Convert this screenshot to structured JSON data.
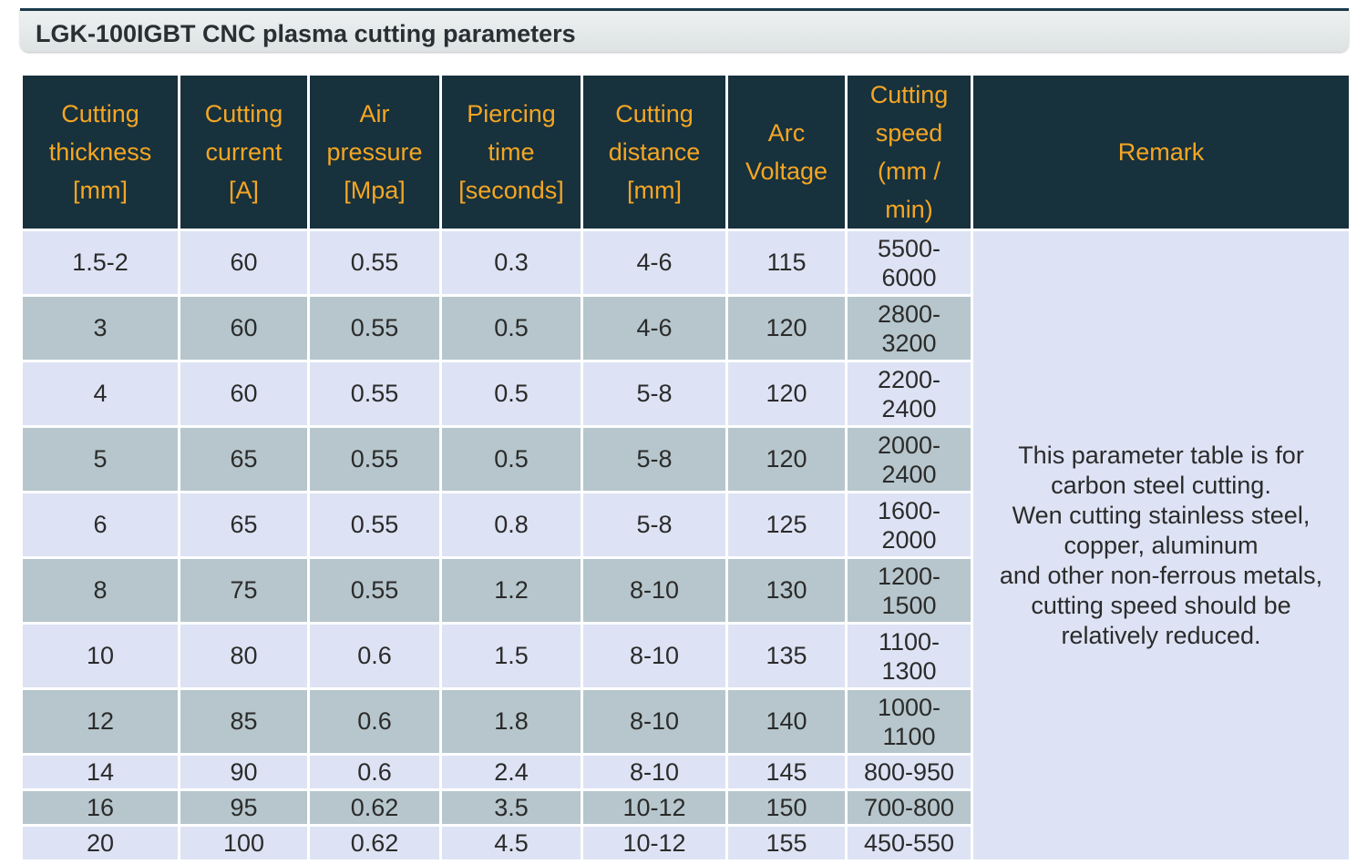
{
  "title": "LGK-100IGBT CNC plasma cutting parameters",
  "table": {
    "headers": [
      "Cutting thickness [mm]",
      "Cutting current [A]",
      "Air pressure [Mpa]",
      "Piercing time [seconds]",
      "Cutting distance [mm]",
      "Arc Voltage",
      "Cutting speed (mm / min)",
      "Remark"
    ],
    "rows": [
      {
        "thickness": "1.5-2",
        "current": "60",
        "pressure": "0.55",
        "piercing": "0.3",
        "distance": "4-6",
        "voltage": "115",
        "speed": "5500-\n6000"
      },
      {
        "thickness": "3",
        "current": "60",
        "pressure": "0.55",
        "piercing": "0.5",
        "distance": "4-6",
        "voltage": "120",
        "speed": "2800-\n3200"
      },
      {
        "thickness": "4",
        "current": "60",
        "pressure": "0.55",
        "piercing": "0.5",
        "distance": "5-8",
        "voltage": "120",
        "speed": "2200-\n2400"
      },
      {
        "thickness": "5",
        "current": "65",
        "pressure": "0.55",
        "piercing": "0.5",
        "distance": "5-8",
        "voltage": "120",
        "speed": "2000-\n2400"
      },
      {
        "thickness": "6",
        "current": "65",
        "pressure": "0.55",
        "piercing": "0.8",
        "distance": "5-8",
        "voltage": "125",
        "speed": "1600-\n2000"
      },
      {
        "thickness": "8",
        "current": "75",
        "pressure": "0.55",
        "piercing": "1.2",
        "distance": "8-10",
        "voltage": "130",
        "speed": "1200-\n1500"
      },
      {
        "thickness": "10",
        "current": "80",
        "pressure": "0.6",
        "piercing": "1.5",
        "distance": "8-10",
        "voltage": "135",
        "speed": "1100-\n1300"
      },
      {
        "thickness": "12",
        "current": "85",
        "pressure": "0.6",
        "piercing": "1.8",
        "distance": "8-10",
        "voltage": "140",
        "speed": "1000-\n1100"
      },
      {
        "thickness": "14",
        "current": "90",
        "pressure": "0.6",
        "piercing": "2.4",
        "distance": "8-10",
        "voltage": "145",
        "speed": "800-950"
      },
      {
        "thickness": "16",
        "current": "95",
        "pressure": "0.62",
        "piercing": "3.5",
        "distance": "10-12",
        "voltage": "150",
        "speed": "700-800"
      },
      {
        "thickness": "20",
        "current": "100",
        "pressure": "0.62",
        "piercing": "4.5",
        "distance": "10-12",
        "voltage": "155",
        "speed": "450-550"
      }
    ],
    "remark": "This parameter table is for\ncarbon steel cutting.\nWen cutting stainless steel,\ncopper, aluminum\nand other non-ferrous metals,\ncutting speed should be\nrelatively reduced."
  },
  "colors": {
    "header_bg": "#17313d",
    "header_text": "#f5a623",
    "row_light": "#dde3f4",
    "row_dark": "#b6c6cc"
  }
}
